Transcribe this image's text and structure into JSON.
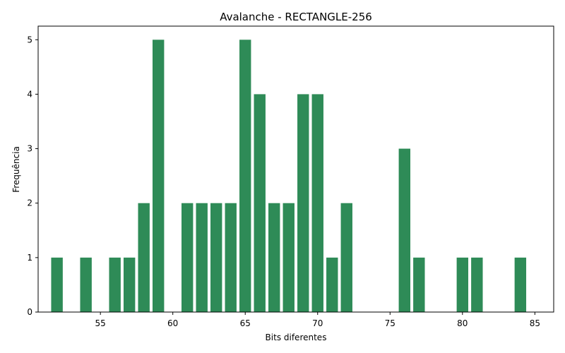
{
  "chart_data": {
    "type": "bar",
    "title": "Avalanche - RECTANGLE-256",
    "xlabel": "Bits diferentes",
    "ylabel": "Frequência",
    "x": [
      52,
      54,
      56,
      57,
      58,
      59,
      61,
      62,
      63,
      64,
      65,
      66,
      67,
      68,
      69,
      70,
      71,
      72,
      76,
      77,
      80,
      81,
      84
    ],
    "values": [
      1,
      1,
      1,
      1,
      2,
      5,
      2,
      2,
      2,
      2,
      5,
      4,
      2,
      2,
      4,
      4,
      1,
      2,
      3,
      1,
      1,
      1,
      1
    ],
    "xlim": [
      50.7,
      86.3
    ],
    "ylim": [
      0,
      5.25
    ],
    "xticks": [
      55,
      60,
      65,
      70,
      75,
      80,
      85
    ],
    "yticks": [
      0,
      1,
      2,
      3,
      4,
      5
    ],
    "bar_color": "#2e8b57",
    "grid": false,
    "legend": "none"
  }
}
